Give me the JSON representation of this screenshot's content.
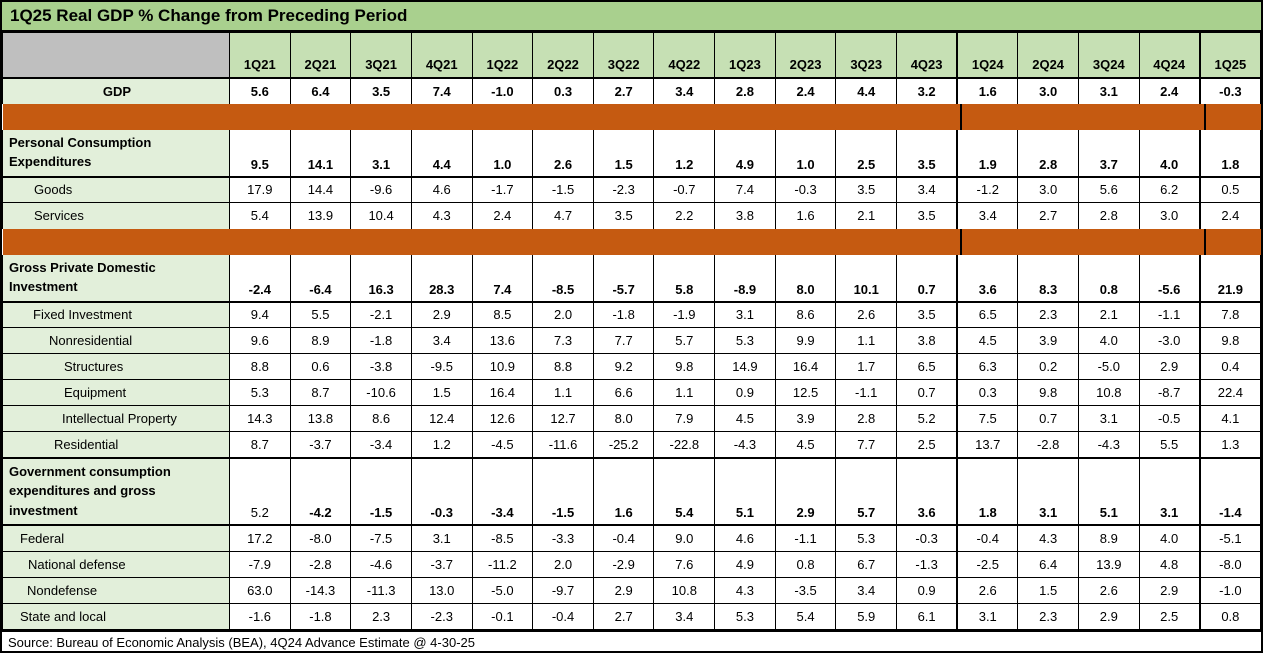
{
  "chart_data": {
    "type": "table",
    "title": "1Q25 Real GDP % Change from Preceding Period",
    "source_note": "Source: Bureau of Economic Analysis (BEA), 4Q24 Advance Estimate @ 4-30-25",
    "columns": [
      "1Q21",
      "2Q21",
      "3Q21",
      "4Q21",
      "1Q22",
      "2Q22",
      "3Q22",
      "4Q22",
      "1Q23",
      "2Q23",
      "3Q23",
      "4Q23",
      "1Q24",
      "2Q24",
      "3Q24",
      "4Q24",
      "1Q25"
    ],
    "rows": [
      {
        "key": "gdp",
        "label": "GDP",
        "style": "total",
        "values": [
          "5.6",
          "6.4",
          "3.5",
          "7.4",
          "-1.0",
          "0.3",
          "2.7",
          "3.4",
          "2.8",
          "2.4",
          "4.4",
          "3.2",
          "1.6",
          "3.0",
          "3.1",
          "2.4",
          "-0.3"
        ]
      },
      {
        "type": "separator",
        "key": "separator-1"
      },
      {
        "key": "pce",
        "label": "Personal Consumption Expenditures",
        "style": "section",
        "values": [
          "9.5",
          "14.1",
          "3.1",
          "4.4",
          "1.0",
          "2.6",
          "1.5",
          "1.2",
          "4.9",
          "1.0",
          "2.5",
          "3.5",
          "1.9",
          "2.8",
          "3.7",
          "4.0",
          "1.8"
        ]
      },
      {
        "key": "goods",
        "label": "Goods",
        "style": "sub",
        "indent": 25,
        "values": [
          "17.9",
          "14.4",
          "-9.6",
          "4.6",
          "-1.7",
          "-1.5",
          "-2.3",
          "-0.7",
          "7.4",
          "-0.3",
          "3.5",
          "3.4",
          "-1.2",
          "3.0",
          "5.6",
          "6.2",
          "0.5"
        ]
      },
      {
        "key": "services",
        "label": "Services",
        "style": "sub",
        "indent": 25,
        "values": [
          "5.4",
          "13.9",
          "10.4",
          "4.3",
          "2.4",
          "4.7",
          "3.5",
          "2.2",
          "3.8",
          "1.6",
          "2.1",
          "3.5",
          "3.4",
          "2.7",
          "2.8",
          "3.0",
          "2.4"
        ]
      },
      {
        "type": "separator",
        "key": "separator-2"
      },
      {
        "key": "gpdi",
        "label": "Gross Private Domestic Investment",
        "style": "section",
        "values": [
          "-2.4",
          "-6.4",
          "16.3",
          "28.3",
          "7.4",
          "-8.5",
          "-5.7",
          "5.8",
          "-8.9",
          "8.0",
          "10.1",
          "0.7",
          "3.6",
          "8.3",
          "0.8",
          "-5.6",
          "21.9"
        ]
      },
      {
        "key": "fixed-investment",
        "label": "Fixed Investment",
        "style": "sub",
        "indent": 24,
        "values": [
          "9.4",
          "5.5",
          "-2.1",
          "2.9",
          "8.5",
          "2.0",
          "-1.8",
          "-1.9",
          "3.1",
          "8.6",
          "2.6",
          "3.5",
          "6.5",
          "2.3",
          "2.1",
          "-1.1",
          "7.8"
        ]
      },
      {
        "key": "nonresidential",
        "label": "Nonresidential",
        "style": "sub",
        "indent": 40,
        "values": [
          "9.6",
          "8.9",
          "-1.8",
          "3.4",
          "13.6",
          "7.3",
          "7.7",
          "5.7",
          "5.3",
          "9.9",
          "1.1",
          "3.8",
          "4.5",
          "3.9",
          "4.0",
          "-3.0",
          "9.8"
        ]
      },
      {
        "key": "structures",
        "label": "Structures",
        "style": "sub",
        "indent": 55,
        "values": [
          "8.8",
          "0.6",
          "-3.8",
          "-9.5",
          "10.9",
          "8.8",
          "9.2",
          "9.8",
          "14.9",
          "16.4",
          "1.7",
          "6.5",
          "6.3",
          "0.2",
          "-5.0",
          "2.9",
          "0.4"
        ]
      },
      {
        "key": "equipment",
        "label": "Equipment",
        "style": "sub",
        "indent": 55,
        "values": [
          "5.3",
          "8.7",
          "-10.6",
          "1.5",
          "16.4",
          "1.1",
          "6.6",
          "1.1",
          "0.9",
          "12.5",
          "-1.1",
          "0.7",
          "0.3",
          "9.8",
          "10.8",
          "-8.7",
          "22.4"
        ]
      },
      {
        "key": "intellectual-property",
        "label": "Intellectual Property",
        "style": "sub",
        "indent": 53,
        "values": [
          "14.3",
          "13.8",
          "8.6",
          "12.4",
          "12.6",
          "12.7",
          "8.0",
          "7.9",
          "4.5",
          "3.9",
          "2.8",
          "5.2",
          "7.5",
          "0.7",
          "3.1",
          "-0.5",
          "4.1"
        ]
      },
      {
        "key": "residential",
        "label": "Residential",
        "style": "sub",
        "indent": 45,
        "thick_bottom": true,
        "values": [
          "8.7",
          "-3.7",
          "-3.4",
          "1.2",
          "-4.5",
          "-11.6",
          "-25.2",
          "-22.8",
          "-4.3",
          "4.5",
          "7.7",
          "2.5",
          "13.7",
          "-2.8",
          "-4.3",
          "5.5",
          "1.3"
        ]
      },
      {
        "key": "government",
        "label": "Government consumption expenditures and gross investment",
        "style": "section",
        "regular_value_indices": [
          0
        ],
        "values": [
          "5.2",
          "-4.2",
          "-1.5",
          "-0.3",
          "-3.4",
          "-1.5",
          "1.6",
          "5.4",
          "5.1",
          "2.9",
          "5.7",
          "3.6",
          "1.8",
          "3.1",
          "5.1",
          "3.1",
          "-1.4"
        ]
      },
      {
        "key": "federal",
        "label": "Federal",
        "style": "sub",
        "indent": 11,
        "values": [
          "17.2",
          "-8.0",
          "-7.5",
          "3.1",
          "-8.5",
          "-3.3",
          "-0.4",
          "9.0",
          "4.6",
          "-1.1",
          "5.3",
          "-0.3",
          "-0.4",
          "4.3",
          "8.9",
          "4.0",
          "-5.1"
        ]
      },
      {
        "key": "national-defense",
        "label": "National defense",
        "style": "sub",
        "indent": 19,
        "values": [
          "-7.9",
          "-2.8",
          "-4.6",
          "-3.7",
          "-11.2",
          "2.0",
          "-2.9",
          "7.6",
          "4.9",
          "0.8",
          "6.7",
          "-1.3",
          "-2.5",
          "6.4",
          "13.9",
          "4.8",
          "-8.0"
        ]
      },
      {
        "key": "nondefense",
        "label": "Nondefense",
        "style": "sub",
        "indent": 18,
        "values": [
          "63.0",
          "-14.3",
          "-11.3",
          "13.0",
          "-5.0",
          "-9.7",
          "2.9",
          "10.8",
          "4.3",
          "-3.5",
          "3.4",
          "0.9",
          "2.6",
          "1.5",
          "2.6",
          "2.9",
          "-1.0"
        ]
      },
      {
        "key": "state-and-local",
        "label": "State and local",
        "style": "sub",
        "indent": 11,
        "values": [
          "-1.6",
          "-1.8",
          "2.3",
          "-2.3",
          "-0.1",
          "-0.4",
          "2.7",
          "3.4",
          "5.3",
          "5.4",
          "5.9",
          "6.1",
          "3.1",
          "2.3",
          "2.9",
          "2.5",
          "0.8"
        ]
      }
    ],
    "year_divider_columns": [
      "1Q24",
      "1Q25"
    ],
    "layout": {
      "grid": true,
      "legend": "none"
    }
  },
  "colors": {
    "title_bar_bg": "#A9D08E",
    "header_cell_bg": "#C6E0B4",
    "label_cell_bg": "#E2EFDA",
    "corner_cell_bg": "#BFBFBF",
    "separator_bar": "#C55A11",
    "border": "#000000",
    "value_bg": "#FFFFFF"
  }
}
